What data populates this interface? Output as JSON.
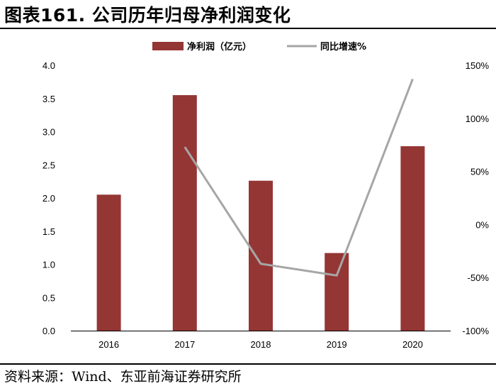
{
  "title": "图表161. 公司历年归母净利润变化",
  "source": "资料来源：Wind、东亚前海证券研究所",
  "colors": {
    "bar": "#943634",
    "line": "#a6a6a6",
    "axis": "#000000"
  },
  "chart_data": {
    "type": "bar",
    "categories": [
      "2016",
      "2017",
      "2018",
      "2019",
      "2020"
    ],
    "series": [
      {
        "name": "净利润（亿元）",
        "type": "bar",
        "axis": "left",
        "values": [
          2.05,
          3.55,
          2.26,
          1.17,
          2.78
        ]
      },
      {
        "name": "同比增速%",
        "type": "line",
        "axis": "right",
        "values": [
          null,
          73,
          -37,
          -48,
          137
        ]
      }
    ],
    "left_axis": {
      "min": 0,
      "max": 4,
      "ticks": [
        "0.0",
        "0.5",
        "1.0",
        "1.5",
        "2.0",
        "2.5",
        "3.0",
        "3.5",
        "4.0"
      ]
    },
    "right_axis": {
      "min": -100,
      "max": 150,
      "ticks": [
        "-100%",
        "-50%",
        "0%",
        "50%",
        "100%",
        "150%"
      ]
    },
    "grid": false,
    "legend": "top-center"
  }
}
